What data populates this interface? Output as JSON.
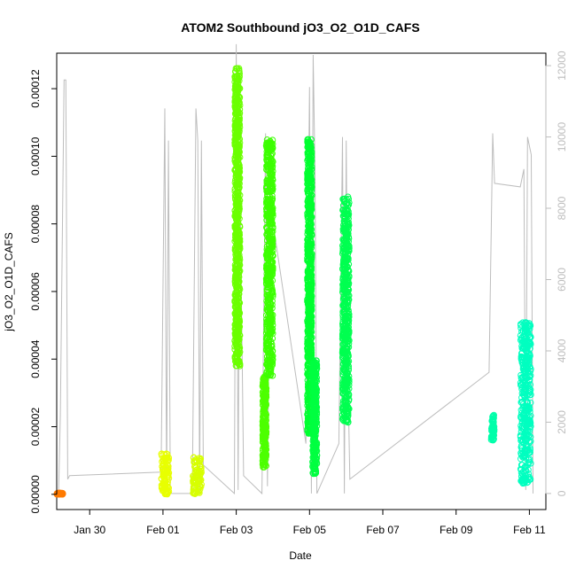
{
  "chart_data": {
    "type": "scatter",
    "title": "ATOM2 Southbound jO3_O2_O1D_CAFS",
    "xlabel": "Date",
    "ylabel": "jO3_O2_O1D_CAFS",
    "x_ticks": [
      "Jan 30",
      "Feb 01",
      "Feb 03",
      "Feb 05",
      "Feb 07",
      "Feb 09",
      "Feb 11"
    ],
    "x_tick_days": [
      29,
      31,
      33,
      35,
      37,
      39,
      41
    ],
    "xlim": [
      28.1,
      41.45
    ],
    "y_ticks": [
      "0.00000",
      "0.00002",
      "0.00004",
      "0.00006",
      "0.00008",
      "0.00010",
      "0.00012"
    ],
    "y_tick_values": [
      0,
      2e-05,
      4e-05,
      6e-05,
      8e-05,
      0.0001,
      0.00012
    ],
    "ylim": [
      -4.5e-06,
      0.0001305
    ],
    "y2_ticks": [
      "0",
      "2000",
      "4000",
      "6000",
      "8000",
      "10000",
      "12000"
    ],
    "y2_tick_values": [
      0,
      2000,
      4000,
      6000,
      8000,
      10000,
      12000
    ],
    "y2lim": [
      -450,
      12350
    ],
    "grid": false,
    "series": [
      {
        "values": [
          {
            "x0": 28.1,
            "x1": 28.3,
            "y0": 0,
            "y1": 4e-07,
            "color": "#ff7a00"
          },
          {
            "x0": 30.96,
            "x1": 31.16,
            "y0": 0,
            "y1": 1.2e-05,
            "color": "#e8ff00"
          },
          {
            "x0": 31.82,
            "x1": 32.05,
            "y0": 0,
            "y1": 1.1e-05,
            "color": "#d7ff00"
          },
          {
            "x0": 32.96,
            "x1": 33.1,
            "y0": 3.8e-05,
            "y1": 0.000126,
            "color": "#6bff00"
          },
          {
            "x0": 33.72,
            "x1": 33.82,
            "y0": 8e-06,
            "y1": 3.5e-05,
            "color": "#4dff00"
          },
          {
            "x0": 33.82,
            "x1": 34.0,
            "y0": 3.5e-05,
            "y1": 0.000105,
            "color": "#3cff00"
          },
          {
            "x0": 34.94,
            "x1": 35.06,
            "y0": 1.8e-05,
            "y1": 0.000105,
            "color": "#00ff30"
          },
          {
            "x0": 35.08,
            "x1": 35.2,
            "y0": 6e-06,
            "y1": 4e-05,
            "color": "#00ff40"
          },
          {
            "x0": 35.9,
            "x1": 36.08,
            "y0": 2.1e-05,
            "y1": 8.8e-05,
            "color": "#00ff50"
          },
          {
            "x0": 39.96,
            "x1": 40.04,
            "y0": 1.6e-05,
            "y1": 2.4e-05,
            "color": "#00ffaa"
          },
          {
            "x0": 40.76,
            "x1": 41.04,
            "y0": 3e-06,
            "y1": 5.1e-05,
            "color": "#00ffc0"
          }
        ]
      },
      {
        "values": [
          [
            28.15,
            0
          ],
          [
            28.2,
            2200
          ],
          [
            28.3,
            11600
          ],
          [
            28.35,
            11600
          ],
          [
            28.4,
            400
          ],
          [
            28.45,
            500
          ],
          [
            30.95,
            600
          ],
          [
            31.05,
            10800
          ],
          [
            31.1,
            100
          ],
          [
            31.15,
            9900
          ],
          [
            31.2,
            0
          ],
          [
            31.8,
            0
          ],
          [
            31.9,
            10800
          ],
          [
            31.95,
            9900
          ],
          [
            32.0,
            0
          ],
          [
            32.05,
            9900
          ],
          [
            32.1,
            800
          ],
          [
            32.95,
            0
          ],
          [
            33.0,
            12600
          ],
          [
            33.05,
            100
          ],
          [
            33.1,
            9100
          ],
          [
            33.2,
            500
          ],
          [
            33.7,
            0
          ],
          [
            33.8,
            10100
          ],
          [
            33.85,
            200
          ],
          [
            33.95,
            9800
          ],
          [
            34.0,
            7600
          ],
          [
            34.9,
            1400
          ],
          [
            35.0,
            11400
          ],
          [
            35.05,
            0
          ],
          [
            35.1,
            12300
          ],
          [
            35.15,
            9000
          ],
          [
            35.2,
            0
          ],
          [
            35.8,
            1400
          ],
          [
            35.9,
            10000
          ],
          [
            35.95,
            0
          ],
          [
            36.0,
            9900
          ],
          [
            36.05,
            3200
          ],
          [
            36.1,
            400
          ],
          [
            39.9,
            3400
          ],
          [
            40.0,
            10100
          ],
          [
            40.05,
            8700
          ],
          [
            40.75,
            8600
          ],
          [
            40.85,
            9100
          ],
          [
            40.9,
            100
          ],
          [
            40.95,
            10000
          ],
          [
            41.05,
            9500
          ],
          [
            41.1,
            0
          ]
        ]
      }
    ]
  }
}
